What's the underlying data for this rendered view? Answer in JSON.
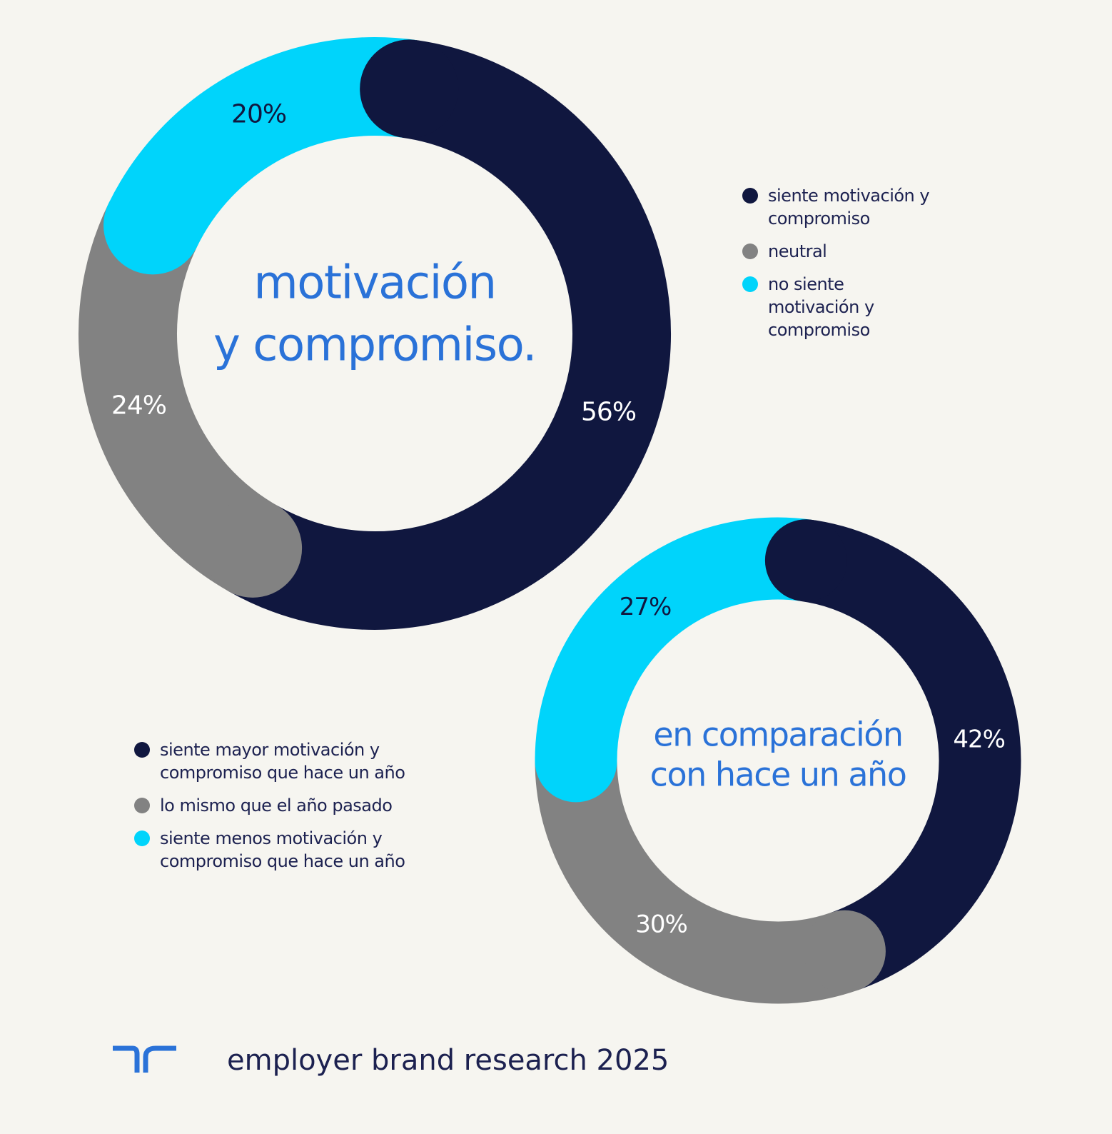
{
  "chart_data": [
    {
      "type": "donut",
      "title": [
        "motivación",
        "y compromiso."
      ],
      "categories": [
        "siente motivación y compromiso",
        "neutral",
        "no siente motivación y compromiso"
      ],
      "values": [
        56,
        24,
        20
      ],
      "value_labels": [
        "56%",
        "24%",
        "20%"
      ],
      "colors": [
        "#10173f",
        "#828282",
        "#00d4fb"
      ]
    },
    {
      "type": "donut",
      "title": [
        "en comparación",
        "con hace un año"
      ],
      "categories": [
        "siente mayor motivación y compromiso que hace un año",
        "lo mismo que el año pasado",
        "siente menos motivación y compromiso que hace un año"
      ],
      "values": [
        42,
        30,
        27
      ],
      "value_labels": [
        "42%",
        "30%",
        "27%"
      ],
      "colors": [
        "#10173f",
        "#828282",
        "#00d4fb"
      ]
    }
  ],
  "footer": {
    "text": "employer brand research 2025"
  }
}
